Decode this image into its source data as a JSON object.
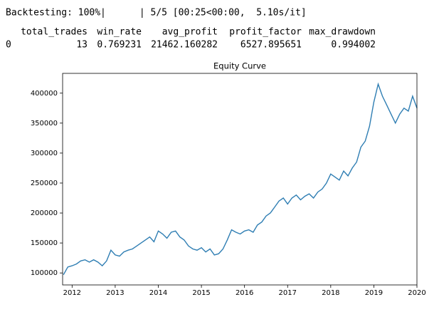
{
  "progress": "Backtesting: 100%|      | 5/5 [00:25<00:00,  5.10s/it]",
  "table": {
    "columns": [
      "total_trades",
      "win_rate",
      "avg_profit",
      "profit_factor",
      "max_drawdown"
    ],
    "index": [
      "0"
    ],
    "rows": [
      [
        13,
        0.769231,
        21462.160282,
        6527.895651,
        0.994002
      ]
    ]
  },
  "chart_data": {
    "type": "line",
    "title": "Equity Curve",
    "x": [
      2011.8,
      2011.9,
      2012.0,
      2012.1,
      2012.2,
      2012.3,
      2012.4,
      2012.5,
      2012.6,
      2012.7,
      2012.8,
      2012.9,
      2013.0,
      2013.1,
      2013.2,
      2013.3,
      2013.4,
      2013.5,
      2013.6,
      2013.7,
      2013.8,
      2013.9,
      2014.0,
      2014.1,
      2014.2,
      2014.3,
      2014.4,
      2014.5,
      2014.6,
      2014.7,
      2014.8,
      2014.9,
      2015.0,
      2015.1,
      2015.2,
      2015.3,
      2015.4,
      2015.5,
      2015.6,
      2015.7,
      2015.8,
      2015.9,
      2016.0,
      2016.1,
      2016.2,
      2016.3,
      2016.4,
      2016.5,
      2016.6,
      2016.7,
      2016.8,
      2016.9,
      2017.0,
      2017.1,
      2017.2,
      2017.3,
      2017.4,
      2017.5,
      2017.6,
      2017.7,
      2017.8,
      2017.9,
      2018.0,
      2018.1,
      2018.2,
      2018.3,
      2018.4,
      2018.5,
      2018.6,
      2018.7,
      2018.8,
      2018.9,
      2019.0,
      2019.1,
      2019.2,
      2019.3,
      2019.4,
      2019.5,
      2019.6,
      2019.7,
      2019.8,
      2019.9,
      2020.0
    ],
    "series": [
      {
        "color": "#2f7eb3",
        "values": [
          97000,
          110000,
          112000,
          115000,
          120000,
          122000,
          118000,
          122000,
          118000,
          112000,
          120000,
          138000,
          130000,
          128000,
          135000,
          138000,
          140000,
          145000,
          150000,
          155000,
          160000,
          152000,
          170000,
          165000,
          158000,
          168000,
          170000,
          160000,
          155000,
          145000,
          140000,
          138000,
          142000,
          135000,
          140000,
          130000,
          132000,
          140000,
          155000,
          172000,
          168000,
          165000,
          170000,
          172000,
          168000,
          180000,
          185000,
          195000,
          200000,
          210000,
          220000,
          225000,
          215000,
          225000,
          230000,
          222000,
          228000,
          232000,
          225000,
          235000,
          240000,
          250000,
          265000,
          260000,
          255000,
          270000,
          262000,
          275000,
          285000,
          310000,
          320000,
          345000,
          385000,
          415000,
          395000,
          380000,
          365000,
          350000,
          365000,
          375000,
          370000,
          395000,
          375000
        ]
      }
    ],
    "xlim": [
      2011.78,
      2020.0
    ],
    "xticks": [
      2012,
      2013,
      2014,
      2015,
      2016,
      2017,
      2018,
      2019,
      2020
    ],
    "ylim": [
      80000,
      433000
    ],
    "yticks": [
      100000,
      150000,
      200000,
      250000,
      300000,
      350000,
      400000
    ],
    "grid": false
  }
}
